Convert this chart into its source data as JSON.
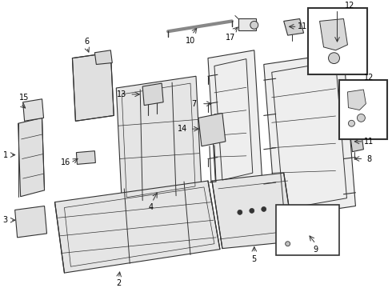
{
  "background_color": "#ffffff",
  "line_color": "#333333",
  "fill_color": "#e8e8e8",
  "fig_width": 4.9,
  "fig_height": 3.6,
  "dpi": 100
}
